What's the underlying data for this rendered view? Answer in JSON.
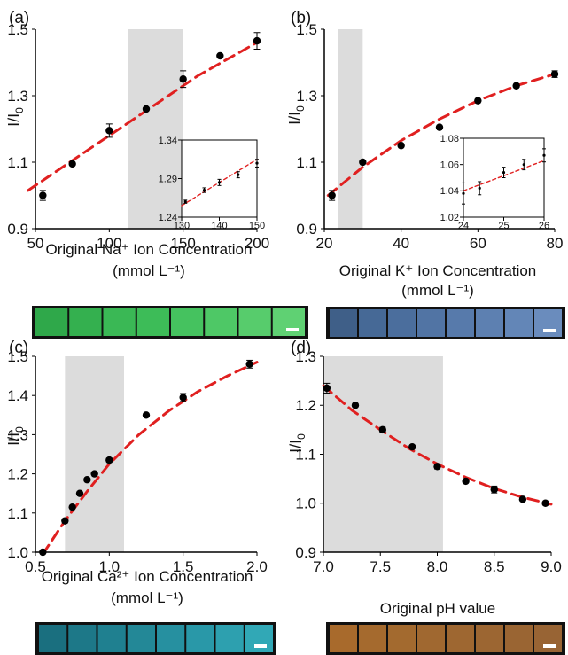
{
  "figure": {
    "panels": [
      {
        "letter": "(a)",
        "ylabel": "I/I0",
        "xlabel_line1": "Original Na⁺ Ion Concentration",
        "xlabel_line2": "(mmol L⁻¹)",
        "strip_colors": [
          "#2fa84a",
          "#34b04f",
          "#3ab855",
          "#3dbc58",
          "#45c25f",
          "#4ec866",
          "#57cc6c",
          "#5fd173"
        ]
      },
      {
        "letter": "(b)",
        "ylabel": "I/I0",
        "xlabel_line1": "Original K⁺ Ion Concentration",
        "xlabel_line2": "(mmol L⁻¹)",
        "strip_colors": [
          "#3f5f88",
          "#466996",
          "#4b6e9d",
          "#5174a4",
          "#577aab",
          "#5d80b1",
          "#6386b7",
          "#6a8cbd"
        ]
      },
      {
        "letter": "(c)",
        "ylabel": "I/I0",
        "xlabel_line1": "Original Ca²⁺ Ion Concentration",
        "xlabel_line2": "(mmol L⁻¹)",
        "strip_colors": [
          "#1a6f7f",
          "#1d7888",
          "#1f8090",
          "#238897",
          "#2690a0",
          "#2998a8",
          "#2da0af",
          "#31a8b6"
        ]
      },
      {
        "letter": "(d)",
        "ylabel": "I/I0",
        "xlabel_line1": "Original pH value",
        "xlabel_line2": "",
        "strip_colors": [
          "#a86a2c",
          "#a56a2e",
          "#a36a2f",
          "#a06830",
          "#9e6731",
          "#9c6632",
          "#9a6533",
          "#986434"
        ]
      }
    ]
  },
  "chart_data": [
    {
      "type": "scatter",
      "panel": "(a)",
      "xlabel": "Original Na⁺ Ion Concentration (mmol L⁻¹)",
      "ylabel": "I/I0",
      "xlim": [
        50,
        200
      ],
      "ylim": [
        0.9,
        1.5
      ],
      "xticks": [
        50,
        100,
        150,
        200
      ],
      "yticks": [
        0.9,
        1.1,
        1.3,
        1.5
      ],
      "shaded_region": [
        113,
        150
      ],
      "points": [
        {
          "x": 55,
          "y": 1.0,
          "err": 0.015
        },
        {
          "x": 75,
          "y": 1.095,
          "err": 0
        },
        {
          "x": 100,
          "y": 1.195,
          "err": 0.02
        },
        {
          "x": 125,
          "y": 1.26,
          "err": 0
        },
        {
          "x": 150,
          "y": 1.35,
          "err": 0.025
        },
        {
          "x": 175,
          "y": 1.42,
          "err": 0
        },
        {
          "x": 200,
          "y": 1.465,
          "err": 0.025
        }
      ],
      "fit": [
        [
          45,
          1.015
        ],
        [
          70,
          1.09
        ],
        [
          100,
          1.18
        ],
        [
          130,
          1.27
        ],
        [
          160,
          1.36
        ],
        [
          200,
          1.46
        ]
      ],
      "inset": {
        "xlim": [
          130,
          150
        ],
        "ylim": [
          1.24,
          1.34
        ],
        "xticks": [
          130,
          140,
          150
        ],
        "yticks": [
          1.24,
          1.29,
          1.34
        ],
        "points": [
          {
            "x": 131,
            "y": 1.26,
            "err": 0.002
          },
          {
            "x": 136,
            "y": 1.275,
            "err": 0.003
          },
          {
            "x": 140,
            "y": 1.285,
            "err": 0.004
          },
          {
            "x": 145,
            "y": 1.295,
            "err": 0.004
          },
          {
            "x": 150,
            "y": 1.31,
            "err": 0.005
          }
        ],
        "fit": [
          [
            130,
            1.255
          ],
          [
            150,
            1.315
          ]
        ]
      }
    },
    {
      "type": "scatter",
      "panel": "(b)",
      "xlabel": "Original K⁺ Ion Concentration (mmol L⁻¹)",
      "ylabel": "I/I0",
      "xlim": [
        20,
        80
      ],
      "ylim": [
        0.9,
        1.5
      ],
      "xticks": [
        20,
        40,
        60,
        80
      ],
      "yticks": [
        0.9,
        1.1,
        1.3,
        1.5
      ],
      "shaded_region": [
        23.5,
        30
      ],
      "points": [
        {
          "x": 22,
          "y": 1.0,
          "err": 0.015
        },
        {
          "x": 30,
          "y": 1.1,
          "err": 0
        },
        {
          "x": 40,
          "y": 1.15,
          "err": 0
        },
        {
          "x": 50,
          "y": 1.205,
          "err": 0
        },
        {
          "x": 60,
          "y": 1.285,
          "err": 0
        },
        {
          "x": 70,
          "y": 1.33,
          "err": 0
        },
        {
          "x": 80,
          "y": 1.365,
          "err": 0.01
        }
      ],
      "fit": [
        [
          21,
          1.0
        ],
        [
          30,
          1.085
        ],
        [
          40,
          1.165
        ],
        [
          50,
          1.23
        ],
        [
          60,
          1.285
        ],
        [
          70,
          1.33
        ],
        [
          80,
          1.365
        ]
      ],
      "inset": {
        "xlim": [
          24,
          26
        ],
        "ylim": [
          1.02,
          1.08
        ],
        "xticks": [
          24,
          25,
          26
        ],
        "yticks": [
          1.02,
          1.04,
          1.06,
          1.08
        ],
        "points": [
          {
            "x": 24.0,
            "y": 1.038,
            "err": 0.008
          },
          {
            "x": 24.4,
            "y": 1.042,
            "err": 0.005
          },
          {
            "x": 25.0,
            "y": 1.054,
            "err": 0.004
          },
          {
            "x": 25.5,
            "y": 1.06,
            "err": 0.004
          },
          {
            "x": 26.0,
            "y": 1.067,
            "err": 0.005
          }
        ],
        "fit": [
          [
            24,
            1.04
          ],
          [
            26,
            1.063
          ]
        ]
      }
    },
    {
      "type": "scatter",
      "panel": "(c)",
      "xlabel": "Original Ca²⁺ Ion Concentration (mmol L⁻¹)",
      "ylabel": "I/I0",
      "xlim": [
        0.5,
        2.0
      ],
      "ylim": [
        1.0,
        1.5
      ],
      "xticks": [
        0.5,
        1.0,
        1.5,
        2.0
      ],
      "yticks": [
        1.0,
        1.1,
        1.2,
        1.3,
        1.4,
        1.5
      ],
      "shaded_region": [
        0.7,
        1.1
      ],
      "points": [
        {
          "x": 0.55,
          "y": 1.0,
          "err": 0
        },
        {
          "x": 0.7,
          "y": 1.08,
          "err": 0.005
        },
        {
          "x": 0.75,
          "y": 1.115,
          "err": 0
        },
        {
          "x": 0.8,
          "y": 1.15,
          "err": 0
        },
        {
          "x": 0.85,
          "y": 1.185,
          "err": 0
        },
        {
          "x": 0.9,
          "y": 1.2,
          "err": 0
        },
        {
          "x": 1.0,
          "y": 1.235,
          "err": 0.005
        },
        {
          "x": 1.25,
          "y": 1.35,
          "err": 0
        },
        {
          "x": 1.5,
          "y": 1.395,
          "err": 0.01
        },
        {
          "x": 1.95,
          "y": 1.48,
          "err": 0.01
        }
      ],
      "fit": [
        [
          0.55,
          0.995
        ],
        [
          0.7,
          1.08
        ],
        [
          0.85,
          1.155
        ],
        [
          1.0,
          1.225
        ],
        [
          1.2,
          1.3
        ],
        [
          1.4,
          1.36
        ],
        [
          1.6,
          1.41
        ],
        [
          1.8,
          1.45
        ],
        [
          2.0,
          1.485
        ]
      ]
    },
    {
      "type": "scatter",
      "panel": "(d)",
      "xlabel": "Original pH value",
      "ylabel": "I/I0",
      "xlim": [
        7.0,
        9.0
      ],
      "ylim": [
        0.9,
        1.3
      ],
      "xticks": [
        7.0,
        7.5,
        8.0,
        8.5,
        9.0
      ],
      "yticks": [
        0.9,
        1.0,
        1.1,
        1.2,
        1.3
      ],
      "shaded_region": [
        7.0,
        8.05
      ],
      "points": [
        {
          "x": 7.03,
          "y": 1.235,
          "err": 0.01
        },
        {
          "x": 7.28,
          "y": 1.2,
          "err": 0
        },
        {
          "x": 7.52,
          "y": 1.15,
          "err": 0.005
        },
        {
          "x": 7.78,
          "y": 1.115,
          "err": 0
        },
        {
          "x": 8.0,
          "y": 1.075,
          "err": 0.005
        },
        {
          "x": 8.25,
          "y": 1.045,
          "err": 0
        },
        {
          "x": 8.5,
          "y": 1.028,
          "err": 0.007
        },
        {
          "x": 8.75,
          "y": 1.008,
          "err": 0
        },
        {
          "x": 8.95,
          "y": 1.0,
          "err": 0
        }
      ],
      "fit": [
        [
          7.0,
          1.24
        ],
        [
          7.25,
          1.19
        ],
        [
          7.5,
          1.15
        ],
        [
          7.75,
          1.112
        ],
        [
          8.0,
          1.08
        ],
        [
          8.25,
          1.053
        ],
        [
          8.5,
          1.03
        ],
        [
          8.75,
          1.012
        ],
        [
          9.0,
          0.998
        ]
      ]
    }
  ]
}
